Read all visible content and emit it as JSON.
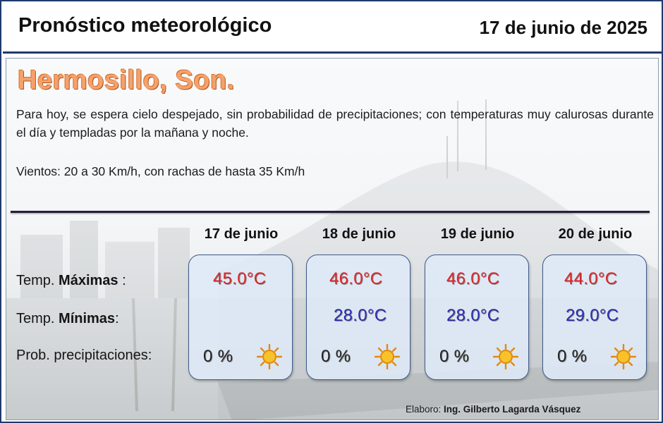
{
  "header": {
    "title": "Pronóstico meteorológico",
    "date": "17 de junio de 2025"
  },
  "location": "Hermosillo, Son.",
  "forecast_text": "Para hoy, se espera cielo despejado, sin probabilidad de precipitaciones; con temperaturas muy calurosas durante el día y templadas por la mañana y noche.",
  "winds": "Vientos: 20 a 30 Km/h, con rachas de hasta 35 Km/h",
  "labels": {
    "max_prefix": "Temp. ",
    "max_bold": "Máximas",
    "max_suffix": " :",
    "min_prefix": "Temp. ",
    "min_bold": "Mínimas",
    "min_suffix": ":",
    "precip": "Prob. precipitaciones:"
  },
  "days": [
    {
      "date": "17 de junio",
      "max": "45.0°C",
      "min": "",
      "precip": "0 %",
      "icon": "sun-icon"
    },
    {
      "date": "18 de junio",
      "max": "46.0°C",
      "min": "28.0°C",
      "precip": "0 %",
      "icon": "sun-icon"
    },
    {
      "date": "19 de junio",
      "max": "46.0°C",
      "min": "28.0°C",
      "precip": "0 %",
      "icon": "sun-icon"
    },
    {
      "date": "20 de junio",
      "max": "44.0°C",
      "min": "29.0°C",
      "precip": "0 %",
      "icon": "sun-icon"
    }
  ],
  "credit": {
    "label": "Elaboro: ",
    "name": "Ing. Gilberto Lagarda Vásquez"
  },
  "colors": {
    "frame": "#1f3a6e",
    "city": "#f6a16a",
    "max_temp": "#d8262a",
    "min_temp": "#2a2ab0",
    "sun": "#f4a11c"
  }
}
